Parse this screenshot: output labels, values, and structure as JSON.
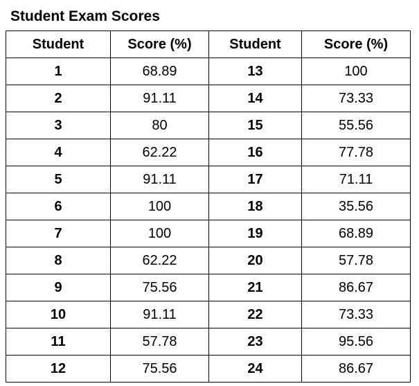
{
  "title": "Student Exam Scores",
  "headers": [
    "Student",
    "Score (%)",
    "Student",
    "Score (%)"
  ],
  "rows": [
    {
      "s1": "1",
      "v1": "68.89",
      "s2": "13",
      "v2": "100"
    },
    {
      "s1": "2",
      "v1": "91.11",
      "s2": "14",
      "v2": "73.33"
    },
    {
      "s1": "3",
      "v1": "80",
      "s2": "15",
      "v2": "55.56"
    },
    {
      "s1": "4",
      "v1": "62.22",
      "s2": "16",
      "v2": "77.78"
    },
    {
      "s1": "5",
      "v1": "91.11",
      "s2": "17",
      "v2": "71.11"
    },
    {
      "s1": "6",
      "v1": "100",
      "s2": "18",
      "v2": "35.56"
    },
    {
      "s1": "7",
      "v1": "100",
      "s2": "19",
      "v2": "68.89"
    },
    {
      "s1": "8",
      "v1": "62.22",
      "s2": "20",
      "v2": "57.78"
    },
    {
      "s1": "9",
      "v1": "75.56",
      "s2": "21",
      "v2": "86.67"
    },
    {
      "s1": "10",
      "v1": "91.11",
      "s2": "22",
      "v2": "73.33"
    },
    {
      "s1": "11",
      "v1": "57.78",
      "s2": "23",
      "v2": "95.56"
    },
    {
      "s1": "12",
      "v1": "75.56",
      "s2": "24",
      "v2": "86.67"
    }
  ]
}
